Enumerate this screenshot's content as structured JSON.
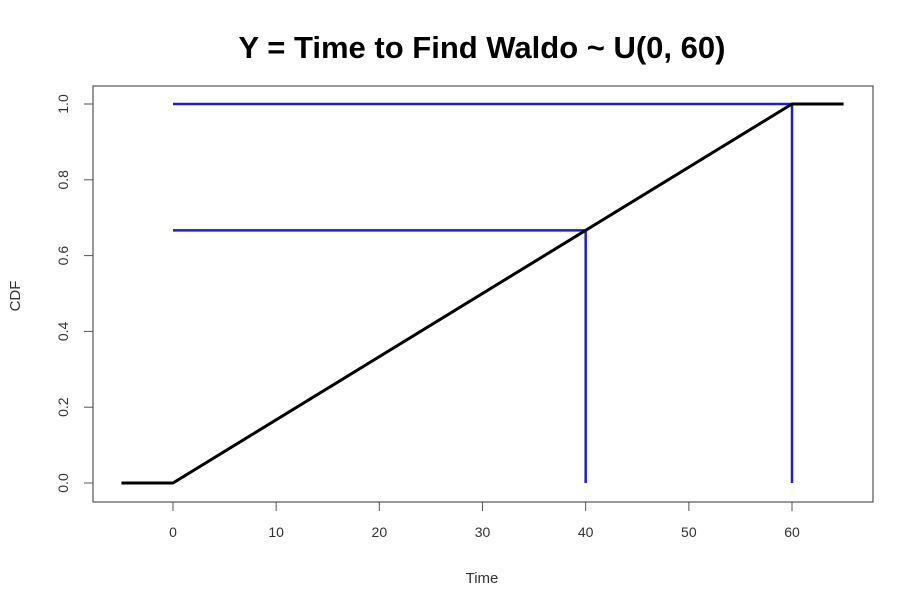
{
  "chart_data": {
    "type": "line",
    "title": "Y = Time to Find Waldo ~ U(0, 60)",
    "xlabel": "Time",
    "ylabel": "CDF",
    "xlim": [
      -5,
      65
    ],
    "ylim": [
      0,
      1
    ],
    "x_ticks": [
      0,
      10,
      20,
      30,
      40,
      50,
      60
    ],
    "y_ticks": [
      "0.0",
      "0.2",
      "0.4",
      "0.6",
      "0.8",
      "1.0"
    ],
    "series": [
      {
        "color": "#000000",
        "points": [
          [
            -5,
            0
          ],
          [
            0,
            0
          ],
          [
            60,
            1
          ],
          [
            65,
            1
          ]
        ]
      }
    ],
    "reference_lines": [
      {
        "color": "#2020c8",
        "points": [
          [
            0,
            0.6667
          ],
          [
            40,
            0.6667
          ]
        ]
      },
      {
        "color": "#2020c8",
        "points": [
          [
            40,
            0.6667
          ],
          [
            40,
            0
          ]
        ]
      },
      {
        "color": "#2020c8",
        "points": [
          [
            0,
            1
          ],
          [
            60,
            1
          ]
        ]
      },
      {
        "color": "#2020c8",
        "points": [
          [
            60,
            1
          ],
          [
            60,
            0
          ]
        ]
      }
    ],
    "grid": false,
    "legend": "none"
  }
}
